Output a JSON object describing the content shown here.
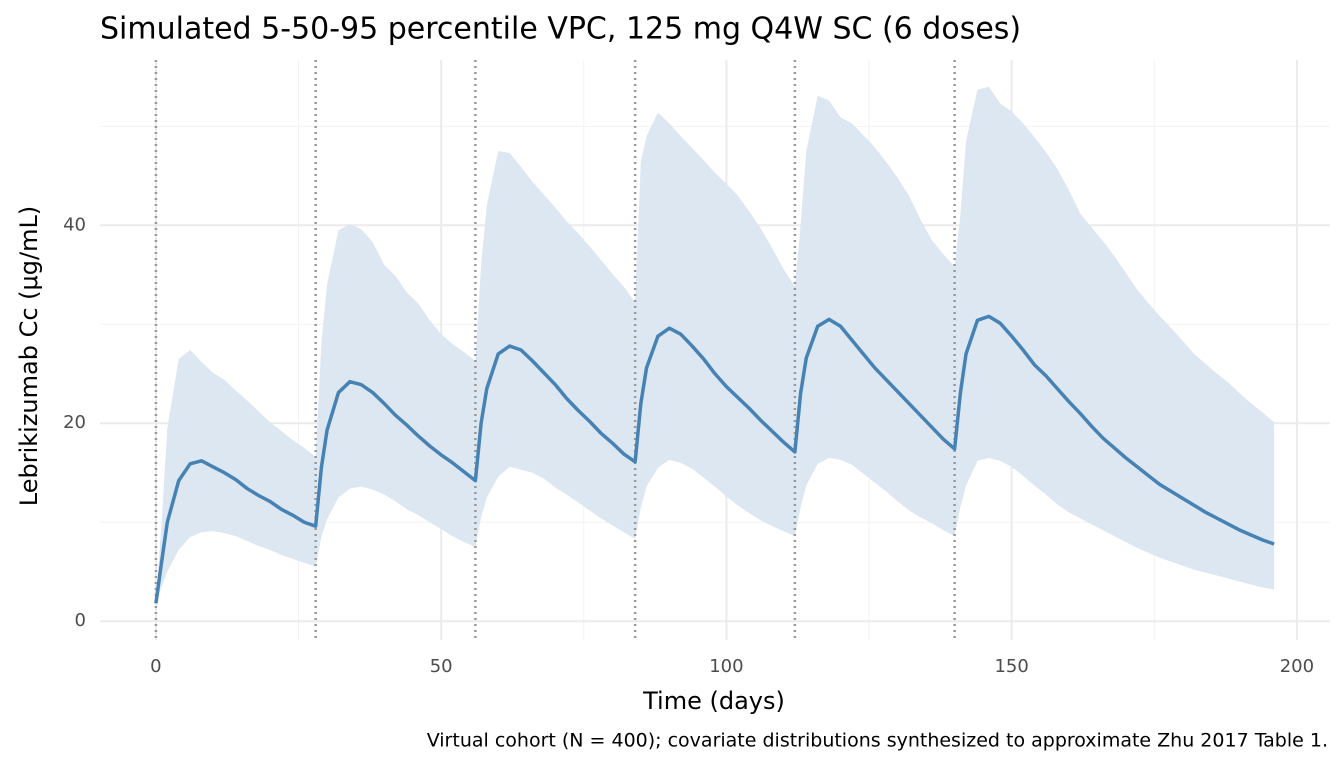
{
  "chart_data": {
    "type": "line",
    "title": "Simulated 5-50-95 percentile VPC, 125 mg Q4W SC (6 doses)",
    "xlabel": "Time (days)",
    "ylabel": "Lebrikizumab Cc (μg/mL)",
    "caption": "Virtual cohort (N = 400); covariate distributions synthesized to approximate Zhu 2017 Table 1.",
    "x": [
      0,
      1,
      2,
      4,
      6,
      8,
      10,
      12,
      14,
      16,
      18,
      20,
      22,
      24,
      26,
      28,
      29,
      30,
      32,
      34,
      36,
      38,
      40,
      42,
      44,
      46,
      48,
      50,
      52,
      54,
      56,
      57,
      58,
      60,
      62,
      64,
      66,
      68,
      70,
      72,
      74,
      76,
      78,
      80,
      82,
      84,
      85,
      86,
      88,
      90,
      92,
      94,
      96,
      98,
      100,
      102,
      104,
      106,
      108,
      110,
      112,
      113,
      114,
      116,
      118,
      120,
      122,
      124,
      126,
      128,
      130,
      132,
      134,
      136,
      138,
      140,
      141,
      142,
      144,
      146,
      148,
      150,
      152,
      154,
      156,
      158,
      160,
      162,
      164,
      166,
      168,
      170,
      172,
      174,
      176,
      178,
      180,
      182,
      184,
      186,
      188,
      190,
      192,
      194,
      196
    ],
    "series": [
      {
        "color": "#4682b4",
        "values": [
          1.8,
          6,
          10,
          14.2,
          15.9,
          16.2,
          15.6,
          15.0,
          14.3,
          13.4,
          12.7,
          12.1,
          11.3,
          10.7,
          10.0,
          9.6,
          15.5,
          19.3,
          23.1,
          24.2,
          23.9,
          23.1,
          22.0,
          20.8,
          19.8,
          18.7,
          17.7,
          16.8,
          16.0,
          15.1,
          14.2,
          20,
          23.5,
          27,
          27.8,
          27.4,
          26.3,
          25.1,
          23.9,
          22.5,
          21.3,
          20.2,
          19.0,
          18.0,
          16.9,
          16.1,
          22,
          25.6,
          28.8,
          29.6,
          29.0,
          27.8,
          26.5,
          25.0,
          23.7,
          22.6,
          21.5,
          20.3,
          19.2,
          18.1,
          17.1,
          23,
          26.6,
          29.8,
          30.5,
          29.8,
          28.4,
          27.0,
          25.6,
          24.4,
          23.2,
          22.0,
          20.8,
          19.6,
          18.4,
          17.4,
          23,
          27,
          30.4,
          30.8,
          30.1,
          28.8,
          27.4,
          25.9,
          24.8,
          23.5,
          22.2,
          21.0,
          19.7,
          18.5,
          17.5,
          16.5,
          15.6,
          14.7,
          13.8,
          13.1,
          12.4,
          11.7,
          11.0,
          10.4,
          9.8,
          9.2,
          8.7,
          8.2,
          7.8
        ]
      }
    ],
    "band": {
      "color": "#dce7f1",
      "upper": [
        1.8,
        10,
        19.5,
        26.5,
        27.4,
        26.2,
        25.1,
        24.4,
        23.3,
        22.3,
        21.2,
        20.1,
        19.2,
        18.3,
        17.5,
        16.6,
        28,
        34,
        39.5,
        40.1,
        39.6,
        38.3,
        36.0,
        34.9,
        33.2,
        32.1,
        30.4,
        29.0,
        28.0,
        27.2,
        26.3,
        36,
        42,
        47.5,
        47.3,
        45.9,
        44.4,
        43.1,
        41.8,
        40.4,
        39.2,
        37.9,
        36.5,
        35.1,
        33.8,
        32.2,
        46.5,
        49,
        51.4,
        50.3,
        49.0,
        47.8,
        46.6,
        45.3,
        44.2,
        43.0,
        41.4,
        39.7,
        37.7,
        35.6,
        33.8,
        40,
        47.5,
        53.1,
        52.6,
        50.9,
        50.3,
        49.1,
        47.9,
        46.4,
        44.8,
        43.0,
        40.6,
        38.5,
        37.1,
        35.8,
        41,
        48.5,
        53.7,
        54.0,
        52.3,
        51.5,
        50.3,
        48.9,
        47.4,
        45.7,
        43.6,
        41.2,
        39.8,
        38.4,
        36.9,
        35.2,
        33.5,
        32.1,
        30.8,
        29.6,
        28.3,
        27.0,
        26.0,
        25.0,
        24.1,
        23.0,
        22.0,
        21.1,
        20.1
      ],
      "lower": [
        1.8,
        3.5,
        5,
        7.2,
        8.5,
        9.0,
        9.1,
        8.9,
        8.6,
        8.1,
        7.6,
        7.2,
        6.7,
        6.3,
        5.9,
        5.5,
        8.5,
        10.3,
        12.5,
        13.4,
        13.6,
        13.3,
        12.8,
        12.1,
        11.3,
        10.7,
        10.0,
        9.3,
        8.6,
        8.0,
        7.5,
        10.5,
        12.5,
        14.6,
        15.6,
        15.3,
        15.0,
        14.4,
        13.5,
        12.8,
        12.0,
        11.2,
        10.4,
        9.7,
        9.0,
        8.3,
        11.5,
        13.6,
        15.5,
        16.3,
        16.0,
        15.4,
        14.5,
        13.6,
        12.6,
        11.7,
        10.9,
        10.2,
        9.6,
        9.1,
        8.6,
        11.5,
        13.7,
        15.9,
        16.5,
        16.3,
        15.8,
        14.9,
        14.0,
        13.1,
        12.1,
        11.2,
        10.5,
        9.9,
        9.2,
        8.6,
        11.5,
        13.7,
        16.2,
        16.5,
        16.2,
        15.6,
        14.7,
        13.7,
        12.8,
        11.8,
        11.0,
        10.4,
        9.8,
        9.2,
        8.6,
        8.0,
        7.4,
        6.9,
        6.4,
        6.0,
        5.6,
        5.2,
        4.9,
        4.6,
        4.3,
        4.0,
        3.7,
        3.4,
        3.2
      ]
    },
    "dose_times": [
      0,
      28,
      56,
      84,
      112,
      140
    ],
    "xlim": [
      -9.8,
      205.8
    ],
    "ylim": [
      -1.9,
      56.7
    ],
    "xticks": [
      0,
      50,
      100,
      150,
      200
    ],
    "yticks": [
      0,
      20,
      40
    ],
    "x_minor_grid": [
      25,
      75,
      125,
      175
    ],
    "y_minor_grid": [
      10,
      30,
      50
    ],
    "grid": true
  }
}
